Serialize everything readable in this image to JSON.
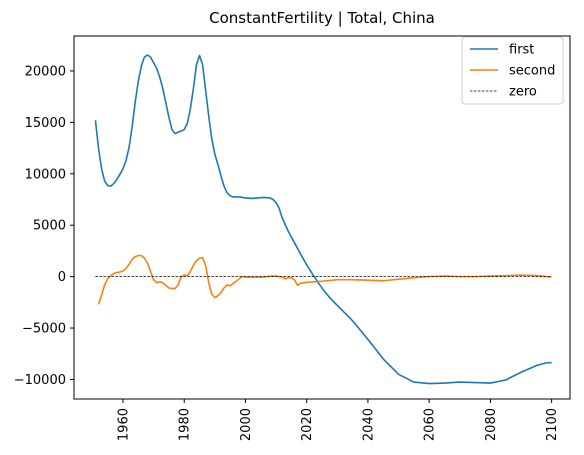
{
  "chart_data": {
    "type": "line",
    "title": "ConstantFertility | Total, China",
    "xlabel": "",
    "ylabel": "",
    "xlim": [
      1944,
      2106
    ],
    "ylim": [
      -11900,
      23400
    ],
    "x_ticks": [
      1960,
      1980,
      2000,
      2020,
      2040,
      2060,
      2080,
      2100
    ],
    "y_ticks": [
      -10000,
      -5000,
      0,
      5000,
      10000,
      15000,
      20000
    ],
    "grid": false,
    "legend_position": "top-right",
    "series": [
      {
        "name": "first",
        "color": "#1f77b4",
        "style": "solid",
        "points": [
          [
            1951,
            15200
          ],
          [
            1952,
            12500
          ],
          [
            1953,
            10500
          ],
          [
            1954,
            9300
          ],
          [
            1955,
            8850
          ],
          [
            1956,
            8800
          ],
          [
            1957,
            9050
          ],
          [
            1958,
            9450
          ],
          [
            1959,
            9950
          ],
          [
            1960,
            10500
          ],
          [
            1961,
            11300
          ],
          [
            1962,
            12600
          ],
          [
            1963,
            14600
          ],
          [
            1964,
            17000
          ],
          [
            1965,
            19000
          ],
          [
            1966,
            20500
          ],
          [
            1967,
            21350
          ],
          [
            1968,
            21550
          ],
          [
            1969,
            21350
          ],
          [
            1970,
            20800
          ],
          [
            1971,
            20250
          ],
          [
            1972,
            19400
          ],
          [
            1973,
            18300
          ],
          [
            1974,
            16900
          ],
          [
            1975,
            15500
          ],
          [
            1976,
            14300
          ],
          [
            1977,
            13900
          ],
          [
            1978,
            14050
          ],
          [
            1979,
            14150
          ],
          [
            1980,
            14300
          ],
          [
            1981,
            14900
          ],
          [
            1982,
            16300
          ],
          [
            1983,
            18300
          ],
          [
            1984,
            20600
          ],
          [
            1985,
            21500
          ],
          [
            1986,
            20600
          ],
          [
            1987,
            18100
          ],
          [
            1988,
            15600
          ],
          [
            1989,
            13400
          ],
          [
            1990,
            11900
          ],
          [
            1991,
            10900
          ],
          [
            1992,
            9800
          ],
          [
            1993,
            8800
          ],
          [
            1994,
            8150
          ],
          [
            1995,
            7850
          ],
          [
            1996,
            7750
          ],
          [
            1998,
            7750
          ],
          [
            2000,
            7650
          ],
          [
            2002,
            7600
          ],
          [
            2004,
            7650
          ],
          [
            2006,
            7700
          ],
          [
            2008,
            7650
          ],
          [
            2009,
            7500
          ],
          [
            2010,
            7200
          ],
          [
            2011,
            6650
          ],
          [
            2012,
            5700
          ],
          [
            2014,
            4400
          ],
          [
            2016,
            3300
          ],
          [
            2018,
            2200
          ],
          [
            2020,
            1150
          ],
          [
            2022,
            200
          ],
          [
            2024,
            -700
          ],
          [
            2026,
            -1500
          ],
          [
            2028,
            -2200
          ],
          [
            2030,
            -2800
          ],
          [
            2035,
            -4300
          ],
          [
            2040,
            -6100
          ],
          [
            2045,
            -8000
          ],
          [
            2050,
            -9500
          ],
          [
            2055,
            -10250
          ],
          [
            2060,
            -10400
          ],
          [
            2065,
            -10350
          ],
          [
            2070,
            -10250
          ],
          [
            2075,
            -10300
          ],
          [
            2080,
            -10350
          ],
          [
            2085,
            -10050
          ],
          [
            2090,
            -9300
          ],
          [
            2095,
            -8650
          ],
          [
            2098,
            -8400
          ],
          [
            2100,
            -8350
          ]
        ]
      },
      {
        "name": "second",
        "color": "#ff7f0e",
        "style": "solid",
        "points": [
          [
            1952,
            -2700
          ],
          [
            1953,
            -1800
          ],
          [
            1954,
            -800
          ],
          [
            1955,
            -200
          ],
          [
            1956,
            100
          ],
          [
            1957,
            300
          ],
          [
            1958,
            400
          ],
          [
            1959,
            450
          ],
          [
            1960,
            550
          ],
          [
            1961,
            800
          ],
          [
            1962,
            1200
          ],
          [
            1963,
            1700
          ],
          [
            1964,
            1950
          ],
          [
            1965,
            2050
          ],
          [
            1966,
            2050
          ],
          [
            1967,
            1800
          ],
          [
            1968,
            1300
          ],
          [
            1969,
            500
          ],
          [
            1970,
            -300
          ],
          [
            1971,
            -600
          ],
          [
            1972,
            -500
          ],
          [
            1973,
            -600
          ],
          [
            1974,
            -850
          ],
          [
            1975,
            -1100
          ],
          [
            1976,
            -1150
          ],
          [
            1977,
            -1150
          ],
          [
            1978,
            -800
          ],
          [
            1979,
            0
          ],
          [
            1980,
            150
          ],
          [
            1981,
            100
          ],
          [
            1982,
            500
          ],
          [
            1983,
            1100
          ],
          [
            1984,
            1550
          ],
          [
            1985,
            1800
          ],
          [
            1986,
            1850
          ],
          [
            1987,
            1100
          ],
          [
            1988,
            -600
          ],
          [
            1989,
            -1700
          ],
          [
            1990,
            -2050
          ],
          [
            1991,
            -1850
          ],
          [
            1992,
            -1550
          ],
          [
            1993,
            -1100
          ],
          [
            1994,
            -800
          ],
          [
            1995,
            -900
          ],
          [
            1996,
            -650
          ],
          [
            1997,
            -450
          ],
          [
            1998,
            -200
          ],
          [
            1999,
            0
          ],
          [
            2000,
            -50
          ],
          [
            2002,
            -50
          ],
          [
            2004,
            -50
          ],
          [
            2006,
            -50
          ],
          [
            2008,
            50
          ],
          [
            2010,
            50
          ],
          [
            2012,
            -50
          ],
          [
            2013,
            -200
          ],
          [
            2014,
            -100
          ],
          [
            2015,
            -100
          ],
          [
            2016,
            -300
          ],
          [
            2017,
            -850
          ],
          [
            2018,
            -650
          ],
          [
            2020,
            -550
          ],
          [
            2025,
            -450
          ],
          [
            2030,
            -300
          ],
          [
            2035,
            -300
          ],
          [
            2040,
            -350
          ],
          [
            2045,
            -400
          ],
          [
            2050,
            -250
          ],
          [
            2055,
            -100
          ],
          [
            2060,
            0
          ],
          [
            2065,
            50
          ],
          [
            2070,
            0
          ],
          [
            2075,
            0
          ],
          [
            2080,
            50
          ],
          [
            2085,
            100
          ],
          [
            2090,
            150
          ],
          [
            2095,
            100
          ],
          [
            2100,
            -50
          ]
        ]
      },
      {
        "name": "zero",
        "color": "#000000",
        "style": "dashed",
        "points": [
          [
            1951,
            0
          ],
          [
            2100,
            0
          ]
        ]
      }
    ]
  }
}
